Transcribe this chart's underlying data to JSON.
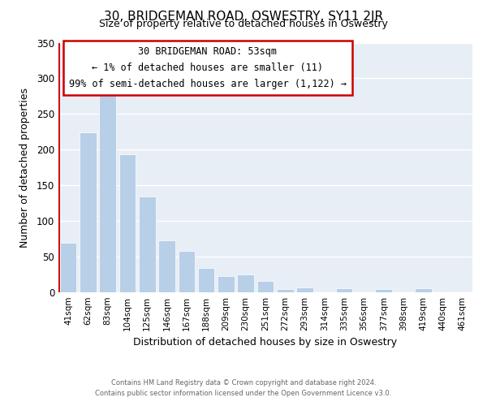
{
  "title": "30, BRIDGEMAN ROAD, OSWESTRY, SY11 2JR",
  "subtitle": "Size of property relative to detached houses in Oswestry",
  "xlabel": "Distribution of detached houses by size in Oswestry",
  "ylabel": "Number of detached properties",
  "bar_color": "#b8cfe8",
  "highlight_color": "#cc0000",
  "categories": [
    "41sqm",
    "62sqm",
    "83sqm",
    "104sqm",
    "125sqm",
    "146sqm",
    "167sqm",
    "188sqm",
    "209sqm",
    "230sqm",
    "251sqm",
    "272sqm",
    "293sqm",
    "314sqm",
    "335sqm",
    "356sqm",
    "377sqm",
    "398sqm",
    "419sqm",
    "440sqm",
    "461sqm"
  ],
  "values": [
    70,
    224,
    280,
    194,
    134,
    73,
    58,
    34,
    23,
    25,
    16,
    5,
    7,
    0,
    6,
    0,
    5,
    0,
    6,
    0,
    1
  ],
  "annotation_title": "30 BRIDGEMAN ROAD: 53sqm",
  "annotation_line1": "← 1% of detached houses are smaller (11)",
  "annotation_line2": "99% of semi-detached houses are larger (1,122) →",
  "ylim": [
    0,
    350
  ],
  "yticks": [
    0,
    50,
    100,
    150,
    200,
    250,
    300,
    350
  ],
  "footer1": "Contains HM Land Registry data © Crown copyright and database right 2024.",
  "footer2": "Contains public sector information licensed under the Open Government Licence v3.0.",
  "plot_bg_color": "#e8eef5",
  "fig_bg_color": "#ffffff",
  "grid_color": "#ffffff"
}
